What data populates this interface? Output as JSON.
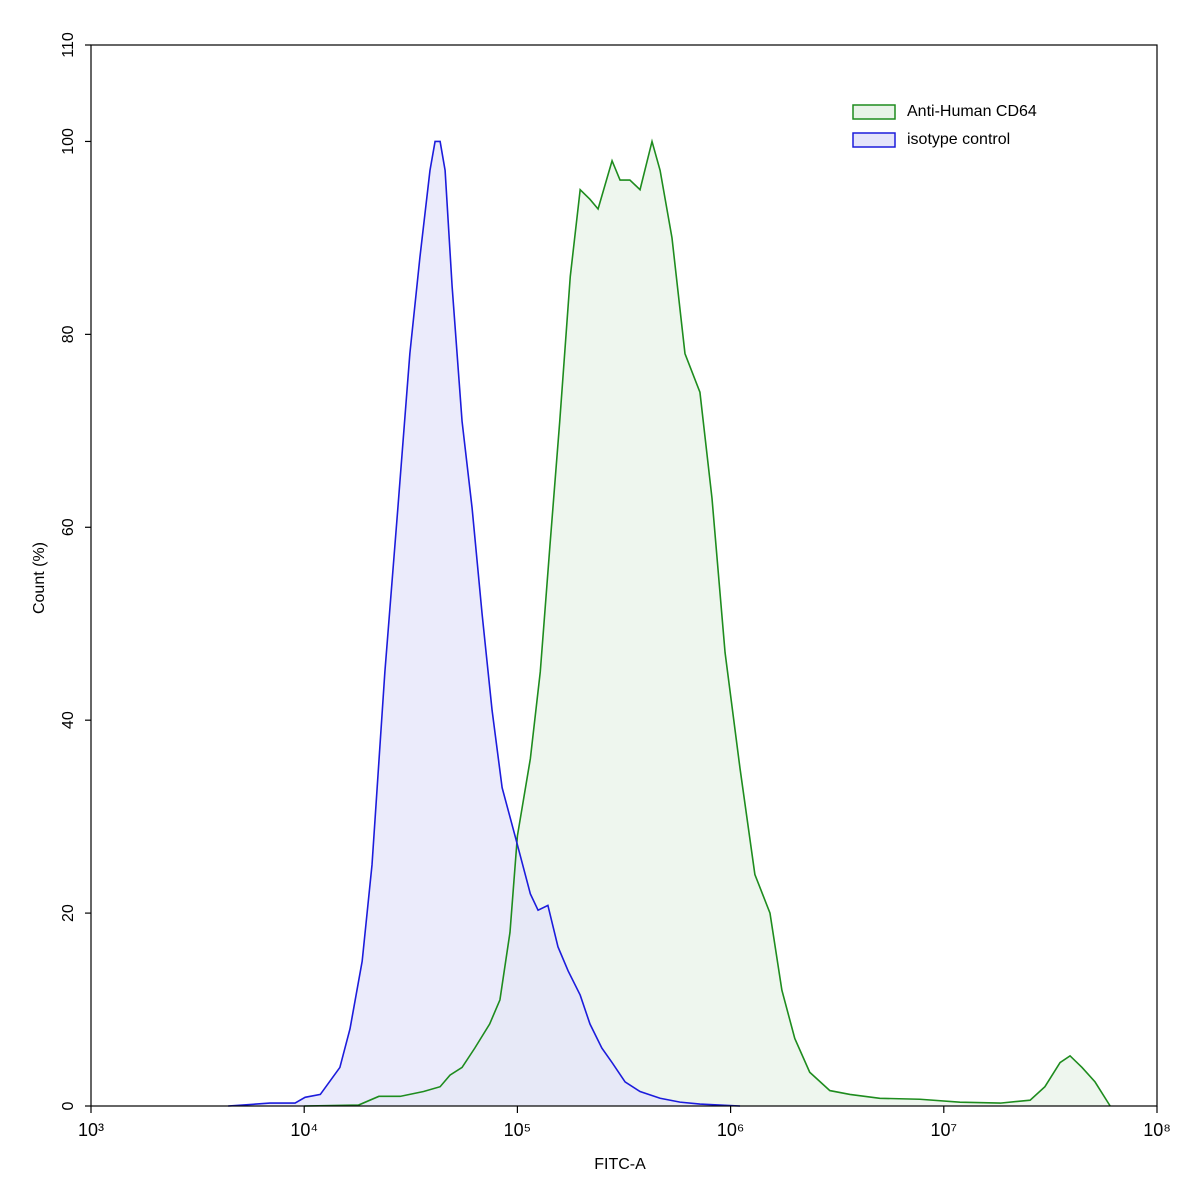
{
  "chart_data": {
    "type": "histogram-overlay",
    "x_label": "FITC-A",
    "y_label": "Count  (%)",
    "log_x": true,
    "xlim": [
      1000,
      100000000
    ],
    "xticks": [
      {
        "value": 1000,
        "label": "10³"
      },
      {
        "value": 10000,
        "label": "10⁴"
      },
      {
        "value": 100000,
        "label": "10⁵"
      },
      {
        "value": 1000000,
        "label": "10⁶"
      },
      {
        "value": 10000000,
        "label": "10⁷"
      },
      {
        "value": 100000000,
        "label": "10⁸"
      }
    ],
    "ylim": [
      0,
      110
    ],
    "yticks": [
      0,
      20,
      40,
      60,
      80,
      100,
      110
    ],
    "legend": "upper right",
    "series": [
      {
        "name": "Anti-Human CD64",
        "color": "#1e8c1e",
        "fill": "#e8f3e8",
        "x": [
          10000,
          18000,
          22400,
          28200,
          36300,
          43400,
          48300,
          55000,
          63100,
          74100,
          82800,
          92300,
          100000,
          115000,
          128000,
          142000,
          158000,
          177000,
          197000,
          219000,
          239000,
          278000,
          303000,
          337000,
          376000,
          428000,
          467000,
          531000,
          611000,
          718000,
          818000,
          942000,
          1107000,
          1300000,
          1530000,
          1740000,
          2000000,
          2350000,
          2920000,
          3630000,
          5010000,
          7720000,
          11900000,
          18400000,
          25400000,
          29800000,
          35100000,
          39100000,
          44500000,
          51200000,
          60300000
        ],
        "values": [
          0,
          0.1,
          1,
          1,
          1.5,
          2,
          3.2,
          4,
          6,
          8.5,
          11,
          18,
          28,
          36,
          45,
          58,
          71,
          86,
          95,
          94,
          93,
          98,
          96,
          96,
          95,
          100,
          97,
          90,
          78,
          74,
          63,
          47,
          35,
          24,
          20,
          12,
          7,
          3.5,
          1.6,
          1.2,
          0.8,
          0.7,
          0.4,
          0.3,
          0.6,
          2,
          4.5,
          5.2,
          4,
          2.5,
          0
        ]
      },
      {
        "name": "isotype control",
        "color": "#1c1cdc",
        "fill": "#e4e4fa",
        "x": [
          4400,
          6900,
          9060,
          10100,
          11900,
          14700,
          16400,
          18700,
          20800,
          23900,
          27500,
          31300,
          34900,
          38900,
          41100,
          43400,
          45800,
          49400,
          55000,
          61300,
          68300,
          76100,
          84800,
          97500,
          115000,
          125000,
          139000,
          155000,
          173000,
          197000,
          219000,
          249000,
          278000,
          320000,
          376000,
          467000,
          579000,
          718000,
          891000,
          1107000
        ],
        "values": [
          0,
          0.3,
          0.3,
          0.9,
          1.2,
          4,
          8,
          15,
          25,
          45,
          62,
          78,
          88,
          97,
          100,
          100,
          97,
          85,
          71,
          62,
          51,
          41,
          33,
          28,
          22,
          20.3,
          20.8,
          16.5,
          14,
          11.5,
          8.5,
          6,
          4.5,
          2.5,
          1.5,
          0.8,
          0.4,
          0.2,
          0.1,
          0
        ]
      }
    ]
  }
}
